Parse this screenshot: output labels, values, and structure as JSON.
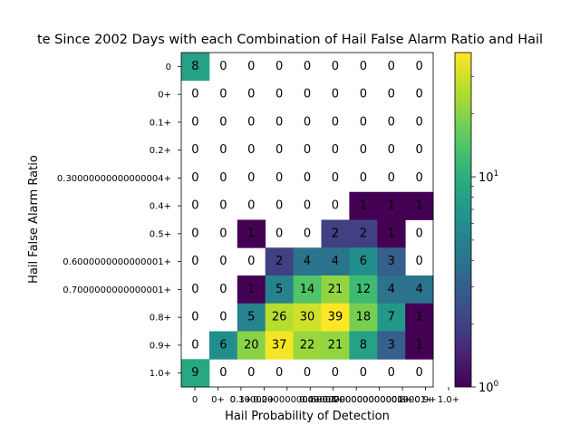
{
  "chart_data": {
    "type": "heatmap",
    "title": "te Since 2002 Days with each Combination of Hail False Alarm Ratio and Hail",
    "xlabel": "Hail Probability of Detection",
    "ylabel": "Hail False Alarm Ratio",
    "x_categories": [
      "0",
      "0+",
      "0.1+",
      "0.2+",
      "0.30000000000000004+",
      "0.4+",
      "0.5+",
      "0.6000000000000001+",
      "0.7000000000000001+",
      "0.8+",
      "0.9+",
      "1.0+"
    ],
    "x_tick_text": [
      "0",
      "0+",
      "0.1+",
      "0.2+",
      "0.30000000000000004+",
      "0.4+",
      "0.5+",
      "0.6000000000000001+",
      "0.7000000000000001+",
      "0.8+",
      "0.9+",
      "1.0+"
    ],
    "y_categories": [
      "0",
      "0+",
      "0.1+",
      "0.2+",
      "0.30000000000000004+",
      "0.4+",
      "0.5+",
      "0.6000000000000001+",
      "0.7000000000000001+",
      "0.8+",
      "0.9+",
      "1.0+"
    ],
    "x_visible_start": 0,
    "x_visible_count": 9,
    "values": [
      [
        8,
        0,
        0,
        0,
        0,
        0,
        0,
        0,
        0
      ],
      [
        0,
        0,
        0,
        0,
        0,
        0,
        0,
        0,
        0
      ],
      [
        0,
        0,
        0,
        0,
        0,
        0,
        0,
        0,
        0
      ],
      [
        0,
        0,
        0,
        0,
        0,
        0,
        0,
        0,
        0
      ],
      [
        0,
        0,
        0,
        0,
        0,
        0,
        0,
        0,
        0
      ],
      [
        0,
        0,
        0,
        0,
        0,
        0,
        1,
        1,
        1
      ],
      [
        0,
        0,
        1,
        0,
        0,
        2,
        2,
        1,
        0
      ],
      [
        0,
        0,
        0,
        2,
        4,
        4,
        6,
        3,
        0
      ],
      [
        0,
        0,
        1,
        5,
        14,
        21,
        12,
        4,
        4
      ],
      [
        0,
        0,
        5,
        26,
        30,
        39,
        18,
        7,
        1
      ],
      [
        0,
        6,
        20,
        37,
        22,
        21,
        8,
        3,
        1
      ],
      [
        9,
        0,
        0,
        0,
        0,
        0,
        0,
        0,
        0
      ]
    ],
    "colorbar": {
      "scale": "log",
      "colormap": "viridis",
      "range": [
        1,
        39
      ],
      "ticks": [
        {
          "value": 1,
          "base": "10",
          "exp": "0"
        },
        {
          "value": 10,
          "base": "10",
          "exp": "1"
        }
      ]
    },
    "grid": false
  }
}
